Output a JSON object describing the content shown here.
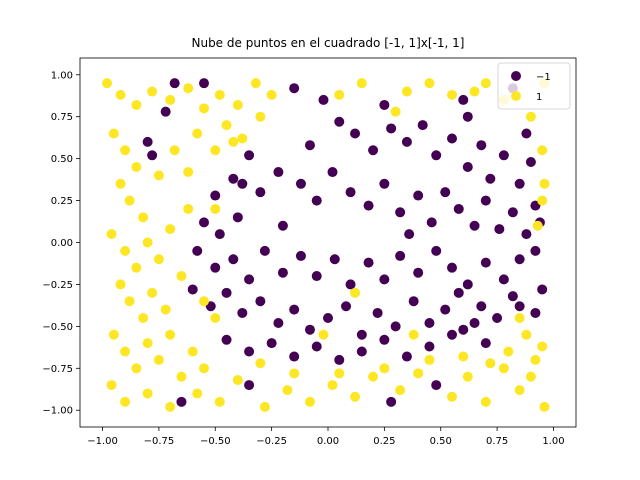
{
  "chart_data": {
    "type": "scatter",
    "title": "Nube de puntos en el cuadrado [-1, 1]x[-1, 1]",
    "xlabel": "",
    "ylabel": "",
    "xlim": [
      -1.1,
      1.1
    ],
    "ylim": [
      -1.1,
      1.1
    ],
    "x_ticks": [
      -1.0,
      -0.75,
      -0.5,
      -0.25,
      0.0,
      0.25,
      0.5,
      0.75,
      1.0
    ],
    "x_tick_labels": [
      "−1.00",
      "−0.75",
      "−0.50",
      "−0.25",
      "0.00",
      "0.25",
      "0.50",
      "0.75",
      "1.00"
    ],
    "y_ticks": [
      -1.0,
      -0.75,
      -0.5,
      -0.25,
      0.0,
      0.25,
      0.5,
      0.75,
      1.0
    ],
    "y_tick_labels": [
      "−1.00",
      "−0.75",
      "−0.50",
      "−0.25",
      "0.00",
      "0.25",
      "0.50",
      "0.75",
      "1.00"
    ],
    "grid": false,
    "legend_position": "top-right",
    "series": [
      {
        "name": "−1",
        "color": "#440154",
        "points": [
          [
            -0.15,
            0.92
          ],
          [
            -0.08,
            0.58
          ],
          [
            0.05,
            0.72
          ],
          [
            0.12,
            0.65
          ],
          [
            0.2,
            0.55
          ],
          [
            0.28,
            0.68
          ],
          [
            0.35,
            0.6
          ],
          [
            0.42,
            0.7
          ],
          [
            0.48,
            0.52
          ],
          [
            0.55,
            0.62
          ],
          [
            0.62,
            0.45
          ],
          [
            0.68,
            0.58
          ],
          [
            0.72,
            0.38
          ],
          [
            0.78,
            0.52
          ],
          [
            0.85,
            0.35
          ],
          [
            0.9,
            0.48
          ],
          [
            0.92,
            0.22
          ],
          [
            -0.35,
            0.52
          ],
          [
            -0.42,
            0.38
          ],
          [
            -0.5,
            0.28
          ],
          [
            -0.55,
            0.12
          ],
          [
            -0.48,
            0.05
          ],
          [
            -0.4,
            0.15
          ],
          [
            -0.3,
            0.3
          ],
          [
            -0.22,
            0.42
          ],
          [
            -0.12,
            0.35
          ],
          [
            -0.05,
            0.25
          ],
          [
            0.02,
            0.42
          ],
          [
            0.1,
            0.3
          ],
          [
            0.18,
            0.22
          ],
          [
            0.25,
            0.35
          ],
          [
            0.32,
            0.18
          ],
          [
            0.4,
            0.28
          ],
          [
            0.46,
            0.12
          ],
          [
            0.52,
            0.3
          ],
          [
            0.58,
            0.2
          ],
          [
            0.65,
            0.1
          ],
          [
            0.7,
            0.25
          ],
          [
            0.76,
            0.08
          ],
          [
            0.82,
            0.18
          ],
          [
            0.88,
            0.05
          ],
          [
            0.94,
            0.12
          ],
          [
            -0.58,
            -0.05
          ],
          [
            -0.5,
            -0.15
          ],
          [
            -0.42,
            -0.1
          ],
          [
            -0.35,
            -0.22
          ],
          [
            -0.28,
            -0.05
          ],
          [
            -0.2,
            -0.18
          ],
          [
            -0.12,
            -0.08
          ],
          [
            -0.05,
            -0.2
          ],
          [
            0.03,
            -0.1
          ],
          [
            0.1,
            -0.25
          ],
          [
            0.18,
            -0.12
          ],
          [
            0.25,
            -0.22
          ],
          [
            0.32,
            -0.08
          ],
          [
            0.4,
            -0.18
          ],
          [
            0.48,
            -0.05
          ],
          [
            0.55,
            -0.15
          ],
          [
            0.62,
            -0.25
          ],
          [
            0.7,
            -0.12
          ],
          [
            0.78,
            -0.22
          ],
          [
            0.85,
            -0.1
          ],
          [
            0.92,
            -0.05
          ],
          [
            -0.6,
            -0.28
          ],
          [
            -0.52,
            -0.38
          ],
          [
            -0.45,
            -0.3
          ],
          [
            -0.38,
            -0.42
          ],
          [
            -0.3,
            -0.35
          ],
          [
            -0.22,
            -0.48
          ],
          [
            -0.15,
            -0.4
          ],
          [
            -0.08,
            -0.52
          ],
          [
            0.0,
            -0.45
          ],
          [
            0.08,
            -0.38
          ],
          [
            0.15,
            -0.55
          ],
          [
            0.22,
            -0.42
          ],
          [
            0.3,
            -0.5
          ],
          [
            0.38,
            -0.35
          ],
          [
            0.45,
            -0.48
          ],
          [
            0.52,
            -0.4
          ],
          [
            0.6,
            -0.52
          ],
          [
            0.68,
            -0.38
          ],
          [
            0.75,
            -0.45
          ],
          [
            0.82,
            -0.32
          ],
          [
            -0.45,
            -0.58
          ],
          [
            -0.35,
            -0.65
          ],
          [
            -0.25,
            -0.6
          ],
          [
            -0.15,
            -0.68
          ],
          [
            -0.05,
            -0.62
          ],
          [
            0.05,
            -0.7
          ],
          [
            0.15,
            -0.65
          ],
          [
            0.25,
            -0.58
          ],
          [
            0.35,
            -0.68
          ],
          [
            0.45,
            -0.62
          ],
          [
            0.55,
            -0.55
          ],
          [
            0.65,
            -0.48
          ],
          [
            0.92,
            -0.42
          ],
          [
            -0.8,
            0.6
          ],
          [
            -0.78,
            0.52
          ],
          [
            -0.72,
            0.78
          ],
          [
            -0.68,
            0.95
          ],
          [
            -0.55,
            0.95
          ],
          [
            -0.38,
            0.35
          ],
          [
            0.95,
            -0.28
          ],
          [
            0.85,
            -0.38
          ],
          [
            -0.02,
            0.85
          ],
          [
            0.25,
            0.82
          ],
          [
            0.6,
            0.85
          ],
          [
            0.82,
            0.92
          ],
          [
            0.88,
            0.65
          ],
          [
            0.62,
            0.75
          ],
          [
            0.48,
            -0.85
          ],
          [
            0.7,
            -0.6
          ],
          [
            -0.35,
            -0.85
          ],
          [
            0.28,
            -0.95
          ],
          [
            -0.65,
            -0.95
          ],
          [
            -0.2,
            0.1
          ],
          [
            0.36,
            0.05
          ],
          [
            0.58,
            -0.3
          ]
        ]
      },
      {
        "name": "1",
        "color": "#fde725",
        "points": [
          [
            -0.98,
            0.95
          ],
          [
            -0.92,
            0.88
          ],
          [
            -0.85,
            0.82
          ],
          [
            -0.78,
            0.9
          ],
          [
            -0.7,
            0.85
          ],
          [
            -0.62,
            0.92
          ],
          [
            -0.55,
            0.8
          ],
          [
            -0.48,
            0.88
          ],
          [
            -0.4,
            0.82
          ],
          [
            -0.32,
            0.95
          ],
          [
            -0.25,
            0.88
          ],
          [
            0.15,
            0.95
          ],
          [
            0.35,
            0.9
          ],
          [
            0.45,
            0.95
          ],
          [
            0.55,
            0.88
          ],
          [
            0.7,
            0.95
          ],
          [
            0.78,
            0.85
          ],
          [
            0.9,
            0.75
          ],
          [
            0.96,
            0.95
          ],
          [
            -0.95,
            0.65
          ],
          [
            -0.9,
            0.55
          ],
          [
            -0.85,
            0.45
          ],
          [
            -0.92,
            0.35
          ],
          [
            -0.88,
            0.25
          ],
          [
            -0.82,
            0.15
          ],
          [
            -0.75,
            0.4
          ],
          [
            -0.68,
            0.55
          ],
          [
            -0.62,
            0.42
          ],
          [
            -0.58,
            0.65
          ],
          [
            -0.5,
            0.55
          ],
          [
            -0.45,
            0.7
          ],
          [
            -0.38,
            0.62
          ],
          [
            -0.3,
            0.75
          ],
          [
            0.95,
            0.55
          ],
          [
            0.96,
            0.35
          ],
          [
            0.95,
            0.25
          ],
          [
            -0.96,
            0.05
          ],
          [
            -0.9,
            -0.05
          ],
          [
            -0.85,
            -0.15
          ],
          [
            -0.8,
            0.0
          ],
          [
            -0.75,
            -0.1
          ],
          [
            -0.7,
            0.08
          ],
          [
            -0.65,
            -0.2
          ],
          [
            -0.92,
            -0.25
          ],
          [
            -0.88,
            -0.35
          ],
          [
            -0.82,
            -0.45
          ],
          [
            -0.78,
            -0.3
          ],
          [
            -0.72,
            -0.4
          ],
          [
            -0.95,
            -0.55
          ],
          [
            -0.9,
            -0.65
          ],
          [
            -0.85,
            -0.75
          ],
          [
            -0.8,
            -0.6
          ],
          [
            -0.75,
            -0.7
          ],
          [
            -0.7,
            -0.55
          ],
          [
            -0.65,
            -0.8
          ],
          [
            -0.6,
            -0.65
          ],
          [
            -0.55,
            -0.75
          ],
          [
            -0.96,
            -0.85
          ],
          [
            -0.9,
            -0.95
          ],
          [
            -0.8,
            -0.9
          ],
          [
            -0.7,
            -0.98
          ],
          [
            -0.58,
            -0.9
          ],
          [
            -0.48,
            -0.95
          ],
          [
            -0.4,
            -0.82
          ],
          [
            -0.28,
            -0.98
          ],
          [
            -0.18,
            -0.88
          ],
          [
            -0.08,
            -0.95
          ],
          [
            0.02,
            -0.85
          ],
          [
            0.12,
            -0.92
          ],
          [
            0.2,
            -0.8
          ],
          [
            0.32,
            -0.88
          ],
          [
            0.4,
            -0.78
          ],
          [
            0.55,
            -0.92
          ],
          [
            0.62,
            -0.8
          ],
          [
            0.7,
            -0.95
          ],
          [
            0.78,
            -0.75
          ],
          [
            0.85,
            -0.88
          ],
          [
            0.92,
            -0.7
          ],
          [
            0.96,
            -0.98
          ],
          [
            0.88,
            -0.55
          ],
          [
            0.95,
            -0.62
          ],
          [
            0.9,
            -0.8
          ],
          [
            0.8,
            -0.65
          ],
          [
            0.72,
            -0.72
          ],
          [
            0.45,
            -0.7
          ],
          [
            0.25,
            -0.75
          ],
          [
            0.05,
            -0.78
          ],
          [
            -0.15,
            -0.78
          ],
          [
            -0.3,
            -0.72
          ],
          [
            -0.5,
            -0.45
          ],
          [
            -0.55,
            -0.35
          ],
          [
            -0.62,
            0.2
          ],
          [
            -0.5,
            0.2
          ],
          [
            -0.42,
            0.6
          ],
          [
            0.05,
            0.88
          ],
          [
            0.3,
            0.78
          ],
          [
            0.65,
            0.9
          ],
          [
            -0.02,
            -0.55
          ],
          [
            0.12,
            -0.3
          ],
          [
            0.38,
            -0.55
          ],
          [
            0.6,
            -0.68
          ],
          [
            0.85,
            -0.45
          ],
          [
            0.93,
            0.1
          ]
        ]
      }
    ]
  }
}
